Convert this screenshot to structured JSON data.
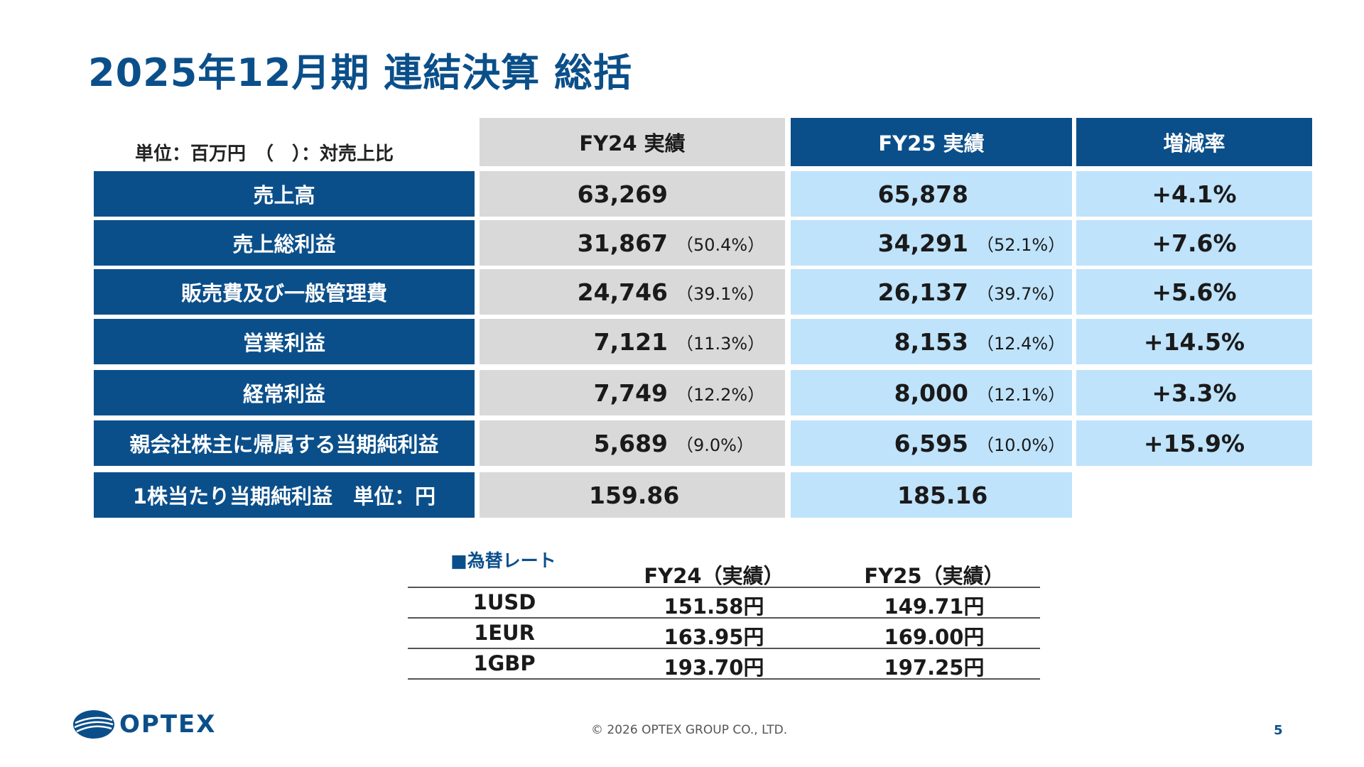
{
  "title": "2025年12月期 連結決算 総括",
  "unit_note": "単位：百万円　（　）：対売上比",
  "table": {
    "headers": {
      "fy24": "FY24 実績",
      "fy25": "FY25 実績",
      "rate": "増減率"
    },
    "rows": [
      {
        "label": "売上高",
        "fy24": "63,269",
        "fy24_pct": "",
        "fy25": "65,878",
        "fy25_pct": "",
        "rate": "+4.1%"
      },
      {
        "label": "売上総利益",
        "fy24": "31,867",
        "fy24_pct": "（50.4%）",
        "fy25": "34,291",
        "fy25_pct": "（52.1%）",
        "rate": "+7.6%"
      },
      {
        "label": "販売費及び一般管理費",
        "fy24": "24,746",
        "fy24_pct": "（39.1%）",
        "fy25": "26,137",
        "fy25_pct": "（39.7%）",
        "rate": "+5.6%"
      },
      {
        "label": "営業利益",
        "fy24": "7,121",
        "fy24_pct": "（11.3%）",
        "fy25": "8,153",
        "fy25_pct": "（12.4%）",
        "rate": "+14.5%"
      },
      {
        "label": "経常利益",
        "fy24": "7,749",
        "fy24_pct": "（12.2%）",
        "fy25": "8,000",
        "fy25_pct": "（12.1%）",
        "rate": "+3.3%"
      },
      {
        "label": "親会社株主に帰属する当期純利益",
        "fy24": "5,689",
        "fy24_pct": "（9.0%）",
        "fy25": "6,595",
        "fy25_pct": "（10.0%）",
        "rate": "+15.9%"
      }
    ],
    "eps": {
      "label": "1株当たり当期純利益　単位：円",
      "fy24": "159.86",
      "fy25": "185.16"
    }
  },
  "fx": {
    "title": "■為替レート",
    "headers": {
      "fy24": "FY24（実績）",
      "fy25": "FY25（実績）"
    },
    "rows": [
      {
        "currency": "1USD",
        "fy24": "151.58円",
        "fy25": "149.71円"
      },
      {
        "currency": "1EUR",
        "fy24": "163.95円",
        "fy25": "169.00円"
      },
      {
        "currency": "1GBP",
        "fy24": "193.70円",
        "fy25": "197.25円"
      }
    ]
  },
  "logo_text": "OPTEX",
  "footer": "© 2026 OPTEX GROUP CO., LTD.",
  "page_number": "5",
  "colors": {
    "primary": "#0b4f8a",
    "light_blue": "#bfe3fb",
    "gray": "#d9d9d9"
  }
}
